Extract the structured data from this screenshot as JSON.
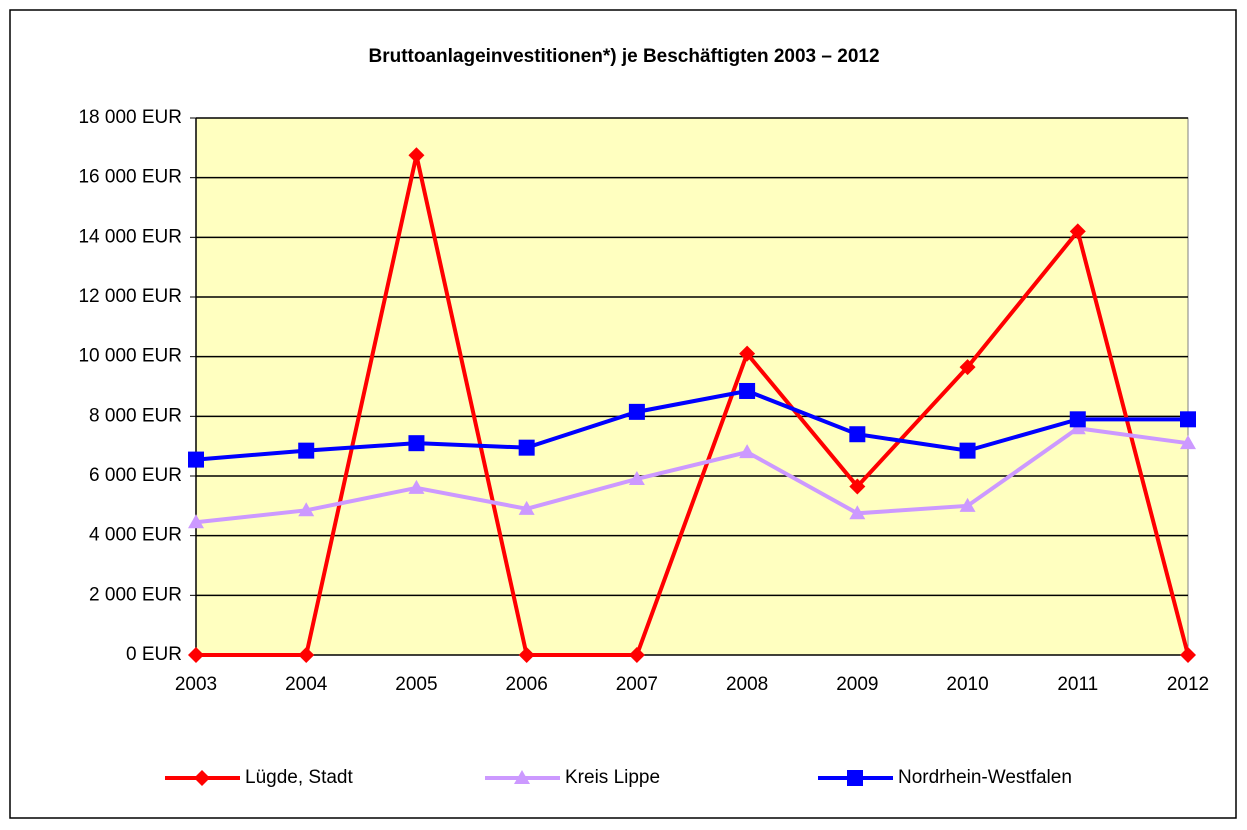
{
  "chart_data": {
    "type": "line",
    "title": "Bruttoanlageinvestitionen*) je Beschäftigten 2003 – 2012",
    "categories": [
      "2003",
      "2004",
      "2005",
      "2006",
      "2007",
      "2008",
      "2009",
      "2010",
      "2011",
      "2012"
    ],
    "series": [
      {
        "name": "Lügde, Stadt",
        "color": "#ff0000",
        "marker": "diamond",
        "values": [
          0,
          0,
          16750,
          0,
          0,
          10100,
          5650,
          9650,
          14200,
          0
        ]
      },
      {
        "name": "Kreis Lippe",
        "color": "#cc99ff",
        "marker": "triangle",
        "values": [
          4450,
          4850,
          5600,
          4900,
          5900,
          6800,
          4750,
          5000,
          7600,
          7100
        ]
      },
      {
        "name": "Nordrhein-Westfalen",
        "color": "#0000ff",
        "marker": "square",
        "values": [
          6550,
          6850,
          7100,
          6950,
          8150,
          8850,
          7400,
          6850,
          7900,
          7900
        ]
      }
    ],
    "ylim": [
      0,
      18000
    ],
    "yticks": [
      {
        "value": 0,
        "label": "0 EUR"
      },
      {
        "value": 2000,
        "label": "2 000 EUR"
      },
      {
        "value": 4000,
        "label": "4 000 EUR"
      },
      {
        "value": 6000,
        "label": "6 000 EUR"
      },
      {
        "value": 8000,
        "label": "8 000 EUR"
      },
      {
        "value": 10000,
        "label": "10 000 EUR"
      },
      {
        "value": 12000,
        "label": "12 000 EUR"
      },
      {
        "value": 14000,
        "label": "14 000 EUR"
      },
      {
        "value": 16000,
        "label": "16 000 EUR"
      },
      {
        "value": 18000,
        "label": "18 000 EUR"
      }
    ],
    "grid": true,
    "legend": "bottom"
  }
}
